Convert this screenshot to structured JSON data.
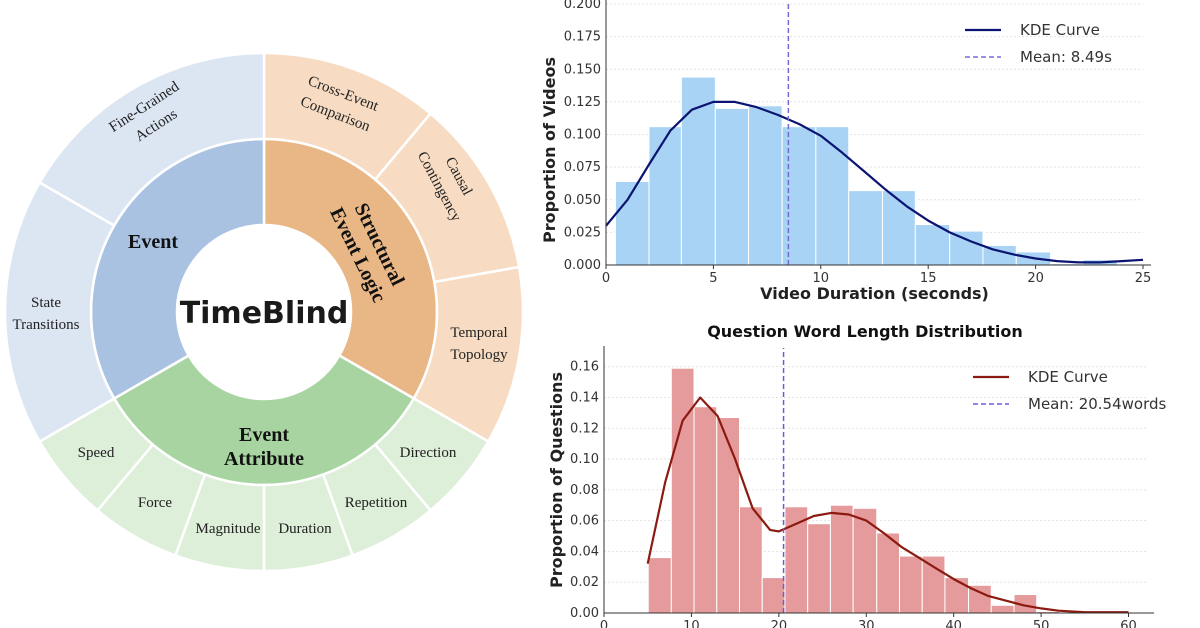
{
  "sunburst": {
    "center_label": "TimeBlind",
    "categories": [
      {
        "name": "Structural Event Logic",
        "line1": "Structural",
        "line2": "Event Logic",
        "inner_color": "#e9b686",
        "outer_color": "#f7dcc3",
        "children": [
          {
            "lines": [
              "Cross-Event",
              "Comparison"
            ],
            "weight": 2
          },
          {
            "lines": [
              "Causal",
              "Contingency"
            ],
            "weight": 2
          },
          {
            "lines": [
              "Temporal",
              "Topology"
            ],
            "weight": 2
          }
        ]
      },
      {
        "name": "Event Attribute",
        "line1": "Event",
        "line2": "Attribute",
        "inner_color": "#a7d4a0",
        "outer_color": "#ddeed9",
        "children": [
          {
            "lines": [
              "Direction"
            ],
            "weight": 1
          },
          {
            "lines": [
              "Repetition"
            ],
            "weight": 1
          },
          {
            "lines": [
              "Duration"
            ],
            "weight": 1
          },
          {
            "lines": [
              "Magnitude"
            ],
            "weight": 1
          },
          {
            "lines": [
              "Force"
            ],
            "weight": 1
          },
          {
            "lines": [
              "Speed"
            ],
            "weight": 1
          }
        ]
      },
      {
        "name": "Event",
        "line1": "Event",
        "line2": "",
        "inner_color": "#aac2e2",
        "outer_color": "#dce6f3",
        "children": [
          {
            "lines": [
              "State",
              "Transitions"
            ],
            "weight": 3
          },
          {
            "lines": [
              "Fine-Grained",
              "Actions"
            ],
            "weight": 3
          }
        ]
      }
    ]
  },
  "chart_data": [
    {
      "type": "bar",
      "title": "",
      "xlabel": "Video Duration (seconds)",
      "ylabel": "Proportion of Videos",
      "xlim": [
        0,
        25
      ],
      "ylim": [
        0,
        0.2
      ],
      "xticks": [
        "0",
        "5",
        "10",
        "15",
        "20",
        "25"
      ],
      "yticks": [
        "0.000",
        "0.025",
        "0.050",
        "0.075",
        "0.100",
        "0.125",
        "0.150",
        "0.175",
        "0.200"
      ],
      "grid": true,
      "bar_color": "#a8d3f5",
      "bin_edges": [
        0.44,
        2.0,
        3.51,
        5.09,
        6.64,
        8.2,
        9.77,
        11.3,
        12.87,
        14.4,
        16.0,
        17.55,
        19.1,
        20.7,
        22.2,
        23.8
      ],
      "values": [
        0.064,
        0.106,
        0.144,
        0.12,
        0.122,
        0.106,
        0.106,
        0.057,
        0.057,
        0.031,
        0.026,
        0.015,
        0.01,
        0.001,
        0.004
      ],
      "kde": {
        "name": "KDE Curve",
        "color": "#0b1470",
        "x": [
          0,
          1,
          2,
          3,
          4,
          5,
          6,
          7,
          8,
          9,
          10,
          11,
          12,
          13,
          14,
          15,
          16,
          17,
          18,
          19,
          20,
          21,
          22,
          23,
          24,
          25
        ],
        "y": [
          0.03,
          0.05,
          0.077,
          0.103,
          0.119,
          0.125,
          0.125,
          0.121,
          0.115,
          0.108,
          0.099,
          0.086,
          0.072,
          0.058,
          0.045,
          0.034,
          0.025,
          0.018,
          0.012,
          0.008,
          0.005,
          0.003,
          0.002,
          0.002,
          0.003,
          0.004
        ]
      },
      "mean": {
        "label": "Mean: 8.49s",
        "value": 8.49,
        "color": "#7b68d8"
      },
      "legend": "top-right"
    },
    {
      "type": "bar",
      "title": "Question Word Length Distribution",
      "xlabel": "",
      "ylabel": "Proportion of Questions",
      "xlim": [
        0,
        62
      ],
      "ylim": [
        0,
        0.165
      ],
      "xticks": [
        "0",
        "10",
        "20",
        "30",
        "40",
        "50",
        "60"
      ],
      "yticks": [
        "0.00",
        "0.02",
        "0.04",
        "0.06",
        "0.08",
        "0.10",
        "0.12",
        "0.14",
        "0.16"
      ],
      "grid": true,
      "bar_color": "#e59b9b",
      "bin_edges": [
        5.06,
        7.7,
        10.3,
        12.9,
        15.5,
        18.1,
        20.7,
        23.3,
        25.9,
        28.5,
        31.2,
        33.8,
        36.4,
        39.0,
        41.7,
        44.3,
        46.9,
        49.5,
        52.1,
        54.7,
        57.3,
        60.0
      ],
      "values": [
        0.036,
        0.159,
        0.134,
        0.127,
        0.069,
        0.023,
        0.069,
        0.058,
        0.07,
        0.068,
        0.052,
        0.037,
        0.037,
        0.023,
        0.018,
        0.005,
        0.012,
        0.001,
        0.0,
        0.0,
        0.001
      ],
      "kde": {
        "name": "KDE Curve",
        "color": "#8b1a10",
        "x": [
          5,
          7,
          9,
          11,
          13,
          15,
          17,
          19,
          20,
          22,
          24,
          26,
          28,
          30,
          32,
          34,
          36,
          38,
          40,
          42,
          44,
          46,
          48,
          50,
          52,
          55,
          60
        ],
        "y": [
          0.032,
          0.085,
          0.125,
          0.14,
          0.128,
          0.1,
          0.068,
          0.054,
          0.053,
          0.058,
          0.063,
          0.065,
          0.064,
          0.06,
          0.052,
          0.043,
          0.036,
          0.029,
          0.022,
          0.016,
          0.011,
          0.008,
          0.005,
          0.003,
          0.0015,
          0.0005,
          0.0005
        ]
      },
      "mean": {
        "label": "Mean: 20.54words",
        "value": 20.54,
        "color": "#6a5ae0"
      },
      "legend": "top-right"
    }
  ]
}
